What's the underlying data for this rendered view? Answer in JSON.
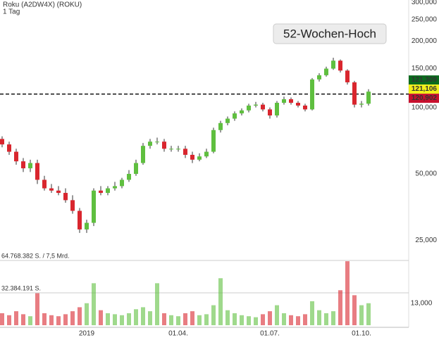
{
  "chart_data": {
    "type": "candlestick",
    "title": "Roku (A2DW4X) (ROKU)",
    "subtitle": "1 Tag",
    "annotation": "52-Wochen-Hoch",
    "log_scale": true,
    "up_color": "#5fbf3f",
    "down_color": "#d9262e",
    "ylim": [
      21.8,
      307
    ],
    "yticks": [
      {
        "value": 25,
        "label": "25,000"
      },
      {
        "value": 50,
        "label": "50,000"
      },
      {
        "value": 100,
        "label": "100,000"
      },
      {
        "value": 150,
        "label": "150,000"
      },
      {
        "value": 200,
        "label": "200,000"
      },
      {
        "value": 250,
        "label": "250,000"
      },
      {
        "value": 300,
        "label": "300,000"
      }
    ],
    "reference_line": 115,
    "price_markers": [
      {
        "value": 121.309,
        "label": "121,309",
        "color": "#0b6b1e"
      },
      {
        "value": 121.106,
        "label": "121,106",
        "color": "#f2ef1a"
      },
      {
        "value": 120.902,
        "label": "120,902",
        "color": "#c8102e"
      }
    ],
    "categories": [
      null,
      null,
      null,
      null,
      null,
      null,
      null,
      null,
      null,
      null,
      null,
      null,
      "2019",
      null,
      null,
      null,
      null,
      null,
      null,
      null,
      null,
      null,
      null,
      null,
      null,
      "01.04.",
      null,
      null,
      null,
      null,
      null,
      null,
      null,
      null,
      null,
      null,
      null,
      null,
      "01.07.",
      null,
      null,
      null,
      null,
      null,
      null,
      null,
      null,
      null,
      null,
      null,
      null,
      "01.10.",
      null
    ],
    "open": [
      72,
      68,
      63,
      57,
      53,
      56,
      47,
      43,
      42,
      41,
      38,
      34,
      28,
      30,
      42,
      41,
      43,
      44,
      47,
      50,
      56,
      67,
      70,
      70,
      65,
      65,
      65,
      61,
      58,
      60,
      63,
      79,
      85,
      89,
      94,
      97,
      102,
      103,
      98,
      92,
      105,
      109,
      105,
      102,
      98,
      134,
      140,
      150,
      163,
      147,
      130,
      103,
      104
    ],
    "high": [
      74,
      70,
      65,
      59,
      58,
      58,
      49,
      45,
      44,
      43,
      40,
      35,
      31,
      43,
      44,
      44,
      46,
      48,
      52,
      58,
      69,
      72,
      73,
      72,
      67,
      67,
      67,
      63,
      62,
      65,
      81,
      87,
      91,
      96,
      99,
      104,
      106,
      105,
      100,
      107,
      112,
      111,
      107,
      104,
      136,
      143,
      153,
      168,
      165,
      149,
      132,
      107,
      121
    ],
    "low": [
      66,
      61,
      55,
      51,
      51,
      45,
      42,
      41,
      40,
      37,
      33,
      27,
      27,
      29,
      40,
      40,
      42,
      43,
      46,
      49,
      55,
      65,
      68,
      63,
      63,
      63,
      59,
      56,
      57,
      59,
      62,
      77,
      83,
      87,
      92,
      95,
      100,
      96,
      89,
      90,
      103,
      103,
      100,
      96,
      97,
      131,
      138,
      148,
      144,
      127,
      100,
      100,
      102
    ],
    "close": [
      68,
      63,
      57,
      53,
      56,
      47,
      43,
      42,
      41,
      38,
      34,
      28,
      30,
      42,
      41,
      43,
      44,
      47,
      50,
      56,
      67,
      70,
      70,
      65,
      65,
      65,
      61,
      58,
      60,
      63,
      79,
      85,
      89,
      94,
      97,
      102,
      103,
      98,
      92,
      105,
      109,
      105,
      102,
      98,
      134,
      140,
      150,
      163,
      147,
      130,
      103,
      104,
      118
    ],
    "volume": [
      12000000,
      10000000,
      14000000,
      11000000,
      9000000,
      32000000,
      12000000,
      10000000,
      9000000,
      11000000,
      14000000,
      18000000,
      22000000,
      42000000,
      15000000,
      12000000,
      11000000,
      10000000,
      12000000,
      16000000,
      18000000,
      14000000,
      42000000,
      12000000,
      10000000,
      9000000,
      12000000,
      14000000,
      10000000,
      11000000,
      20000000,
      47000000,
      15000000,
      12000000,
      10000000,
      9000000,
      8000000,
      11000000,
      14000000,
      20000000,
      12000000,
      10000000,
      9000000,
      11000000,
      24000000,
      15000000,
      12000000,
      14000000,
      35000000,
      64000000,
      30000000,
      20000000,
      22000000
    ],
    "volume_ylim": [
      0,
      64768382
    ],
    "volume_yticks": [
      {
        "value": 64768382,
        "label": "64.768.382 S. / 7,5 Mrd."
      },
      {
        "value": 32384191,
        "label": "32.384.191 S."
      }
    ],
    "volume_axis_label": "13,000"
  }
}
